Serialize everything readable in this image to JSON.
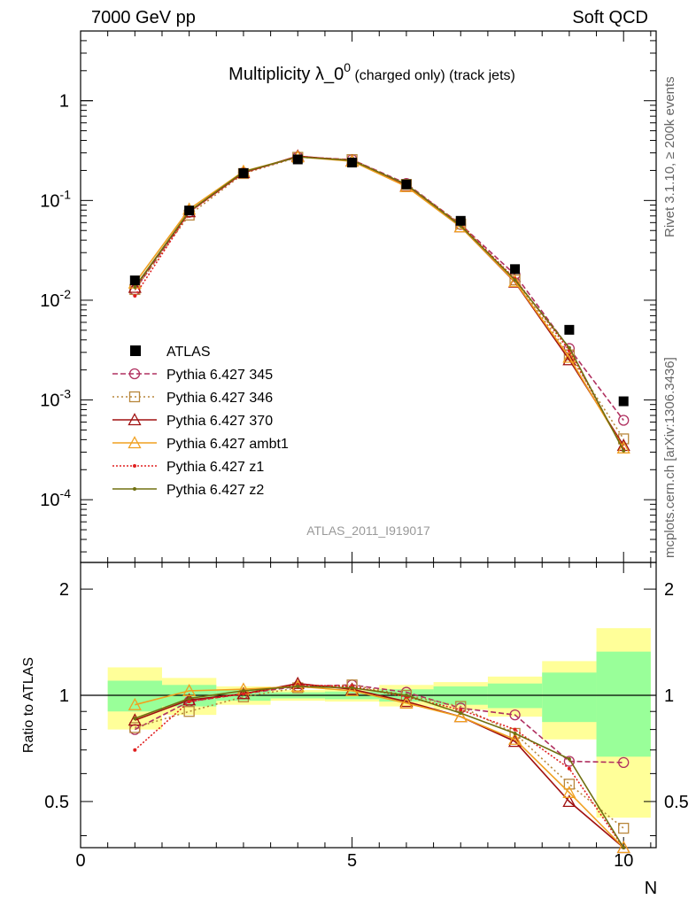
{
  "header": {
    "left": "7000 GeV pp",
    "right": "Soft QCD"
  },
  "side_labels": {
    "rivet": "Rivet 3.1.10, ≥ 200k events",
    "mcplots": "mcplots.cern.ch [arXiv:1306.3436]"
  },
  "analysis_label": "ATLAS_2011_I919017",
  "chart_data": {
    "type": "line",
    "title": {
      "main": "Multiplicity λ_0",
      "sup": "0",
      "small": "(charged only) (track jets)"
    },
    "xlabel": "N",
    "ylabel_ratio": "Ratio to ATLAS",
    "xlim": [
      0,
      10.6
    ],
    "ylim_main": [
      2.35e-05,
      5
    ],
    "yscale_main": "log",
    "ylim_ratio": [
      0.37,
      2.38
    ],
    "yscale_ratio": "log",
    "x_ticks": [
      0,
      5,
      10
    ],
    "main_y_ticks": [
      "1",
      "10^-1",
      "10^-2",
      "10^-3",
      "10^-4"
    ],
    "ratio_y_ticks": [
      "0.5",
      "1",
      "2"
    ],
    "legend_position": "middle-left",
    "x": [
      1,
      2,
      3,
      4,
      5,
      6,
      7,
      8,
      9,
      10
    ],
    "data": {
      "name": "ATLAS",
      "color": "#000000",
      "values": [
        0.0158,
        0.0793,
        0.188,
        0.258,
        0.24,
        0.145,
        0.0625,
        0.0205,
        0.00505,
        0.00097
      ]
    },
    "ratio_band_outer": [
      0.2,
      0.12,
      0.06,
      0.035,
      0.04,
      0.07,
      0.09,
      0.13,
      0.25,
      0.55
    ],
    "ratio_band_inner": [
      0.1,
      0.07,
      0.035,
      0.02,
      0.025,
      0.04,
      0.06,
      0.08,
      0.16,
      0.33
    ],
    "series": [
      {
        "name": "Pythia 6.427 345",
        "color": "#b03060",
        "dash": "6,3",
        "marker": "circle",
        "ratio": [
          0.8,
          0.96,
          1.01,
          1.06,
          1.07,
          1.02,
          0.92,
          0.88,
          0.65,
          0.645
        ]
      },
      {
        "name": "Pythia 6.427 346",
        "color": "#b8863b",
        "dash": "2,3",
        "marker": "square",
        "ratio": [
          0.81,
          0.9,
          0.99,
          1.05,
          1.07,
          1.0,
          0.93,
          0.78,
          0.56,
          0.42
        ]
      },
      {
        "name": "Pythia 6.427 370",
        "color": "#a01010",
        "dash": "",
        "marker": "triangle",
        "ratio": [
          0.85,
          0.97,
          1.01,
          1.08,
          1.04,
          0.96,
          0.87,
          0.74,
          0.5,
          0.36
        ]
      },
      {
        "name": "Pythia 6.427 ambt1",
        "color": "#f0a020",
        "dash": "",
        "marker": "triangle",
        "ratio": [
          0.94,
          1.03,
          1.04,
          1.06,
          1.03,
          0.95,
          0.87,
          0.75,
          0.53,
          0.34
        ]
      },
      {
        "name": "Pythia 6.427 z1",
        "color": "#e02020",
        "dash": "2,2",
        "marker": "dot",
        "ratio": [
          0.7,
          0.96,
          1.01,
          1.07,
          1.06,
          0.99,
          0.91,
          0.8,
          0.62,
          0.33
        ]
      },
      {
        "name": "Pythia 6.427 z2",
        "color": "#707010",
        "dash": "",
        "marker": "dot",
        "ratio": [
          0.86,
          0.98,
          1.03,
          1.06,
          1.05,
          1.0,
          0.89,
          0.78,
          0.66,
          0.32
        ]
      }
    ]
  }
}
